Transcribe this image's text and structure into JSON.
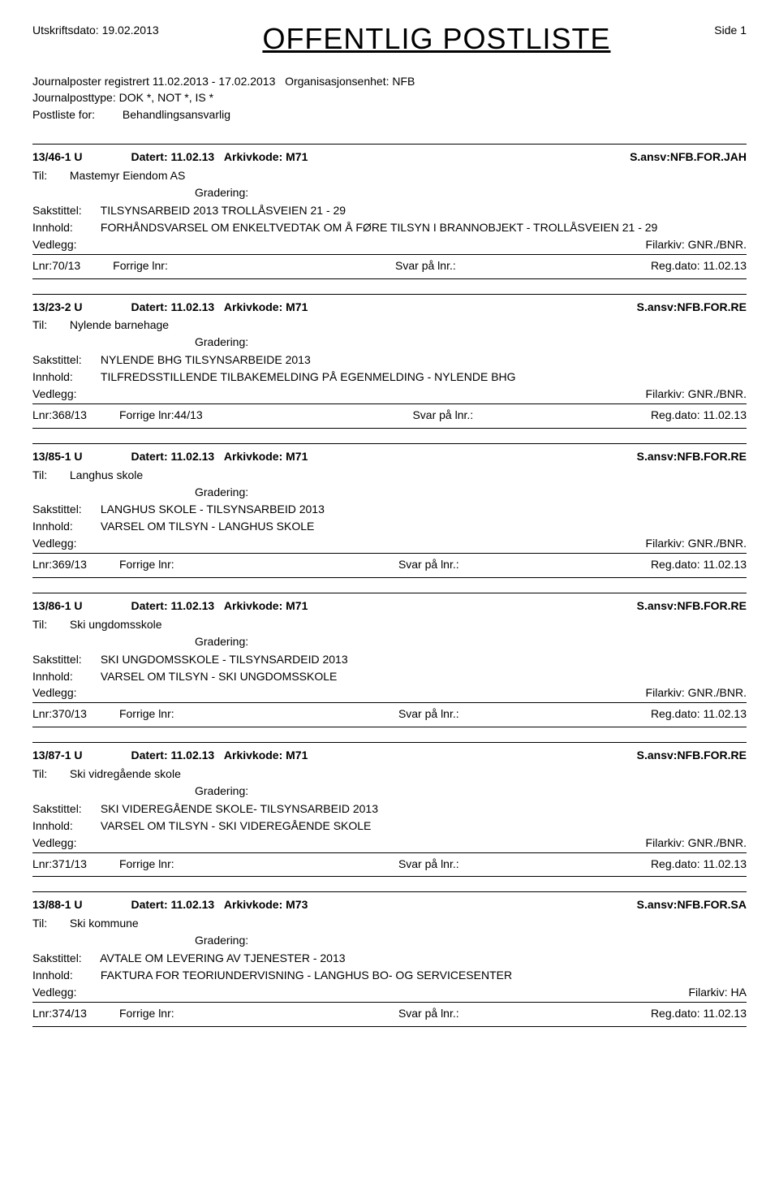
{
  "header": {
    "print_label": "Utskriftsdato:",
    "print_date": "19.02.2013",
    "title": "OFFENTLIG POSTLISTE",
    "side_label": "Side",
    "side_num": "1"
  },
  "meta": {
    "line1_label": "Journalposter registrert",
    "line1_dates": "11.02.2013 - 17.02.2013",
    "line1_org_label": "Organisasjonsenhet:",
    "line1_org_val": "NFB",
    "line2_label": "Journalposttype:",
    "line2_val": "DOK *, NOT *, IS *",
    "line3_label": "Postliste for:",
    "line3_val": "Behandlingsansvarlig"
  },
  "labels": {
    "til": "Til:",
    "gradering": "Gradering:",
    "sakstittel": "Sakstittel:",
    "innhold": "Innhold:",
    "vedlegg": "Vedlegg:",
    "filarkiv": "Filarkiv:",
    "lnr": "Lnr:",
    "forrige": "Forrige lnr:",
    "svar": "Svar på lnr.:",
    "regdato": "Reg.dato:",
    "datert": "Datert:",
    "arkivkode": "Arkivkode:",
    "sansv": "S.ansv:"
  },
  "entries": [
    {
      "id": "13/46-1 U",
      "datert": "11.02.13",
      "arkivkode": "M71",
      "sansv": "NFB.FOR.JAH",
      "til": "Mastemyr Eiendom AS",
      "sak": "TILSYNSARBEID 2013 TROLLÅSVEIEN 21 - 29",
      "inn": "FORHÅNDSVARSEL OM ENKELTVEDTAK OM Å FØRE TILSYN I BRANNOBJEKT - TROLLÅSVEIEN 21 - 29",
      "filarkiv": "GNR./BNR.",
      "lnr": "70/13",
      "forrige": "",
      "svar": "",
      "regdato": "11.02.13"
    },
    {
      "id": "13/23-2 U",
      "datert": "11.02.13",
      "arkivkode": "M71",
      "sansv": "NFB.FOR.RE",
      "til": "Nylende barnehage",
      "sak": "NYLENDE BHG TILSYNSARBEIDE 2013",
      "inn": "TILFREDSSTILLENDE TILBAKEMELDING PÅ EGENMELDING - NYLENDE BHG",
      "filarkiv": "GNR./BNR.",
      "lnr": "368/13",
      "forrige": "44/13",
      "svar": "",
      "regdato": "11.02.13"
    },
    {
      "id": "13/85-1 U",
      "datert": "11.02.13",
      "arkivkode": "M71",
      "sansv": "NFB.FOR.RE",
      "til": "Langhus skole",
      "sak": "LANGHUS SKOLE - TILSYNSARBEID 2013",
      "inn": "VARSEL OM TILSYN - LANGHUS SKOLE",
      "filarkiv": "GNR./BNR.",
      "lnr": "369/13",
      "forrige": "",
      "svar": "",
      "regdato": "11.02.13"
    },
    {
      "id": "13/86-1 U",
      "datert": "11.02.13",
      "arkivkode": "M71",
      "sansv": "NFB.FOR.RE",
      "til": "Ski ungdomsskole",
      "sak": "SKI UNGDOMSSKOLE - TILSYNSARDEID 2013",
      "inn": "VARSEL OM TILSYN - SKI UNGDOMSSKOLE",
      "filarkiv": "GNR./BNR.",
      "lnr": "370/13",
      "forrige": "",
      "svar": "",
      "regdato": "11.02.13"
    },
    {
      "id": "13/87-1 U",
      "datert": "11.02.13",
      "arkivkode": "M71",
      "sansv": "NFB.FOR.RE",
      "til": "Ski vidregående skole",
      "sak": "SKI VIDEREGÅENDE SKOLE- TILSYNSARBEID 2013",
      "inn": "VARSEL OM TILSYN - SKI VIDEREGÅENDE SKOLE",
      "filarkiv": "GNR./BNR.",
      "lnr": "371/13",
      "forrige": "",
      "svar": "",
      "regdato": "11.02.13"
    },
    {
      "id": "13/88-1 U",
      "datert": "11.02.13",
      "arkivkode": "M73",
      "sansv": "NFB.FOR.SA",
      "til": "Ski kommune",
      "sak": "AVTALE OM LEVERING AV TJENESTER - 2013",
      "inn": "FAKTURA FOR TEORIUNDERVISNING - LANGHUS BO- OG SERVICESENTER",
      "filarkiv": "HA",
      "lnr": "374/13",
      "forrige": "",
      "svar": "",
      "regdato": "11.02.13"
    }
  ]
}
